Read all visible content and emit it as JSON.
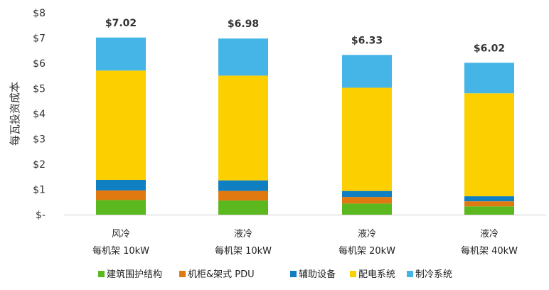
{
  "chart_data": {
    "type": "bar",
    "stacked": true,
    "title": "",
    "xlabel": "",
    "ylabel": "每瓦投资成本",
    "ylim": [
      0,
      8
    ],
    "yticks": [
      "$-",
      "$1",
      "$2",
      "$3",
      "$4",
      "$5",
      "$6",
      "$7",
      "$8"
    ],
    "grid": false,
    "legend_position": "bottom",
    "categories": [
      [
        "风冷",
        "每机架 10kW"
      ],
      [
        "液冷",
        "每机架 10kW"
      ],
      [
        "液冷",
        "每机架 20kW"
      ],
      [
        "液冷",
        "每机架 40kW"
      ]
    ],
    "totals": [
      "$7.02",
      "$6.98",
      "$6.33",
      "$6.02"
    ],
    "series": [
      {
        "name": "建筑围护结构",
        "color": "#5bb81e",
        "values": [
          0.58,
          0.56,
          0.44,
          0.33
        ]
      },
      {
        "name": "机柜&架式 PDU",
        "color": "#e07a10",
        "values": [
          0.38,
          0.38,
          0.26,
          0.2
        ]
      },
      {
        "name": "辅助设备",
        "color": "#0f7fc2",
        "values": [
          0.42,
          0.42,
          0.24,
          0.2
        ]
      },
      {
        "name": "配电系统",
        "color": "#fcd000",
        "values": [
          4.33,
          4.15,
          4.09,
          4.08
        ]
      },
      {
        "name": "制冷系统",
        "color": "#45b4e6",
        "values": [
          1.31,
          1.47,
          1.3,
          1.21
        ]
      }
    ]
  }
}
